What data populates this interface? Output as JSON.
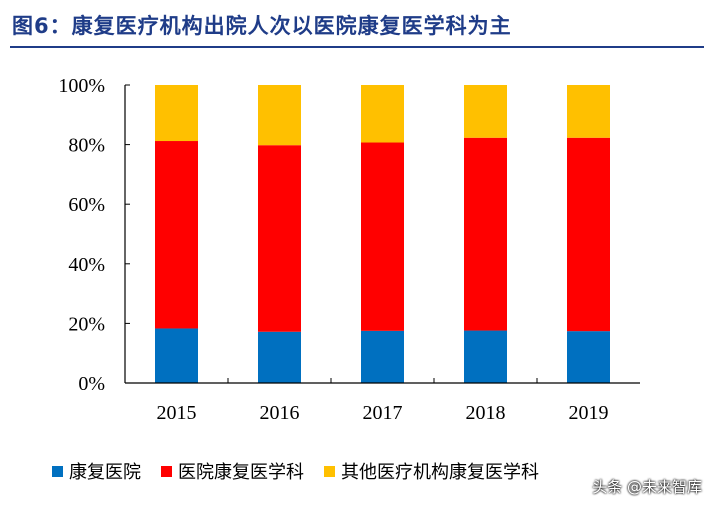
{
  "title": "图6：康复医疗机构出院人次以医院康复医学科为主",
  "watermark": "头条 @未来智库",
  "chart_data": {
    "type": "bar",
    "stacked": true,
    "percent": true,
    "categories": [
      "2015",
      "2016",
      "2017",
      "2018",
      "2019"
    ],
    "series": [
      {
        "name": "康复医院",
        "color": "#0070c0",
        "values": [
          18.3,
          17.2,
          17.5,
          17.6,
          17.4
        ]
      },
      {
        "name": "医院康复医学科",
        "color": "#ff0000",
        "values": [
          62.9,
          62.6,
          63.2,
          64.7,
          64.9
        ]
      },
      {
        "name": "其他医疗机构康复医学科",
        "color": "#ffc000",
        "values": [
          18.8,
          20.2,
          19.3,
          17.7,
          17.7
        ]
      }
    ],
    "yticks": [
      "0%",
      "20%",
      "40%",
      "60%",
      "80%",
      "100%"
    ],
    "ylim": [
      0,
      100
    ],
    "grid": false,
    "legend": "bottom"
  }
}
